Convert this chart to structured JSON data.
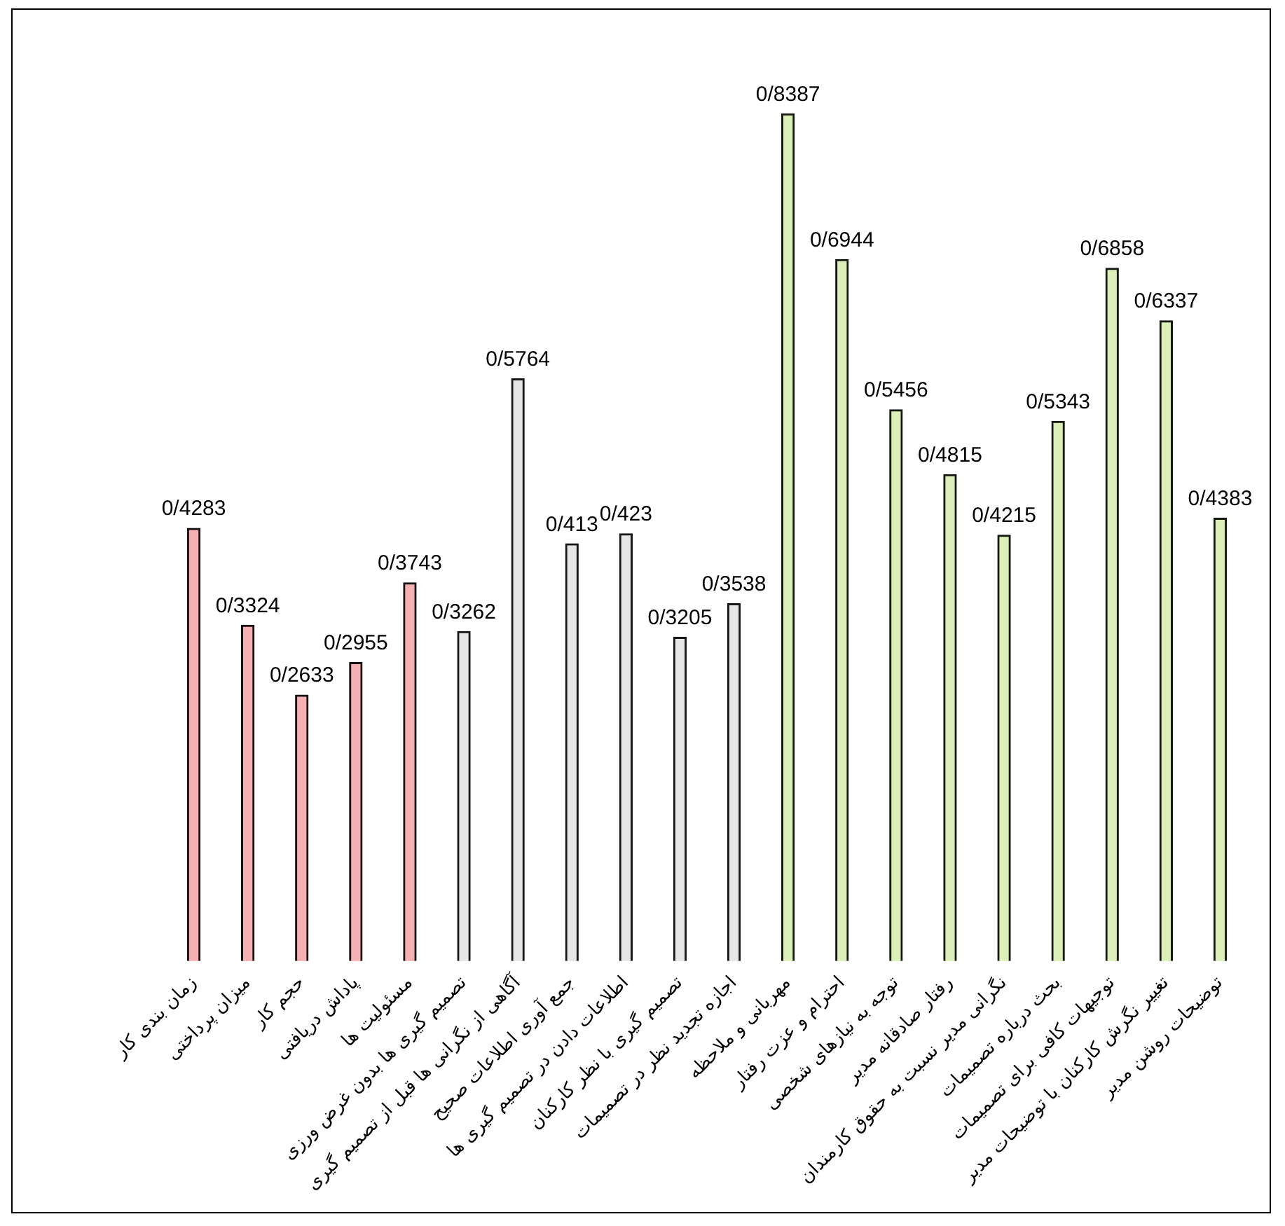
{
  "chart_data": {
    "type": "bar",
    "categories": [
      "زمان بندی کار",
      "میزان پرداختی",
      "حجم کار",
      "پاداش دریافتی",
      "مسئولیت ها",
      "تصمیم گیری ها بدون غرض ورزی",
      "آگاهی از نگرانی ها قبل از تصمیم گیری",
      "جمع آوری اطلاعات صحیح",
      "اطلاعات دادن در تصمیم گیری ها",
      "تصمیم گیری با نظر کارکنان",
      "اجازه تجدید نظر در تصمیمات",
      "مهربانی و ملاحظه",
      "احترام و عزت رفتار",
      "توجه به نیازهای شخصی",
      "رفتار صادقانه مدیر",
      "نگرانی مدیر نسبت به حقوق کارمندان",
      "بحث درباره تصمیمات",
      "توجیهات کافی برای تصمیمات",
      "تغییر نگرش کارکنان با توضیحات مدیر",
      "توضیحات روشن مدیر"
    ],
    "values": [
      0.4283,
      0.3324,
      0.2633,
      0.2955,
      0.3743,
      0.3262,
      0.5764,
      0.413,
      0.423,
      0.3205,
      0.3538,
      0.8387,
      0.6944,
      0.5456,
      0.4815,
      0.4215,
      0.5343,
      0.6858,
      0.6337,
      0.4383
    ],
    "value_labels": [
      "0/4283",
      "0/3324",
      "0/2633",
      "0/2955",
      "0/3743",
      "0/3262",
      "0/5764",
      "0/413",
      "0/423",
      "0/3205",
      "0/3538",
      "0/8387",
      "0/6944",
      "0/5456",
      "0/4815",
      "0/4215",
      "0/5343",
      "0/6858",
      "0/6337",
      "0/4383"
    ],
    "colors": [
      "#f4b0b3",
      "#f4b0b3",
      "#f4b0b3",
      "#f4b0b3",
      "#f4b0b3",
      "#e6e6e6",
      "#e6e6e6",
      "#e6e6e6",
      "#e6e6e6",
      "#e6e6e6",
      "#e6e6e6",
      "#dcefb8",
      "#dcefb8",
      "#dcefb8",
      "#dcefb8",
      "#dcefb8",
      "#dcefb8",
      "#dcefb8",
      "#dcefb8",
      "#dcefb8"
    ],
    "grid": false,
    "legend": false,
    "tick_labels": "x"
  }
}
